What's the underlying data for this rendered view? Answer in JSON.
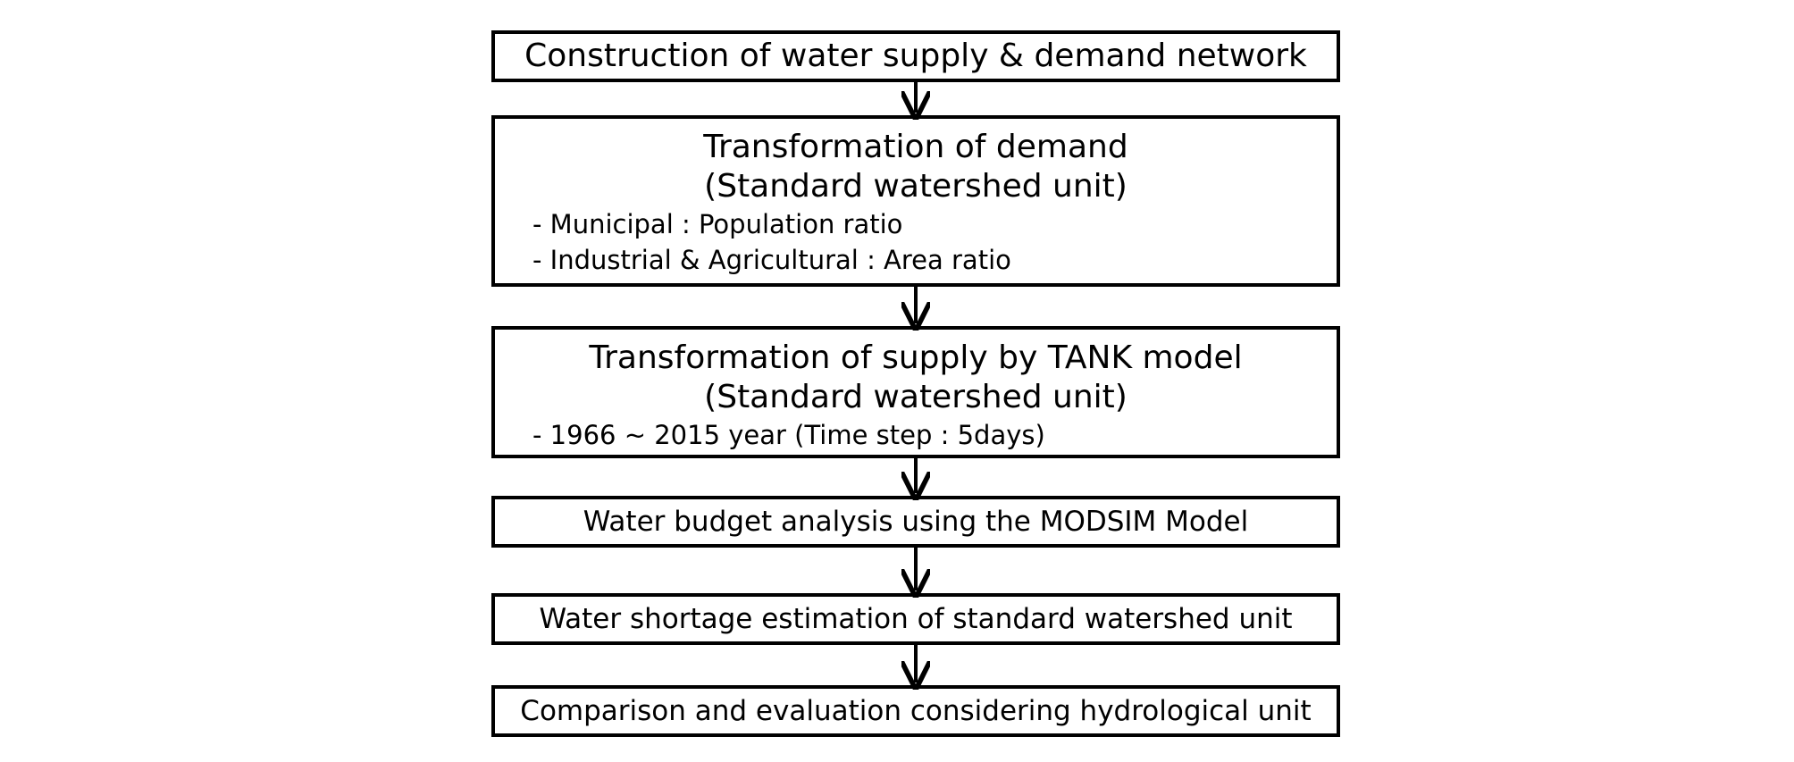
{
  "flowchart": {
    "steps": [
      {
        "title": "Construction of water supply & demand network"
      },
      {
        "title": "Transformation of demand",
        "subtitle": "(Standard watershed unit)",
        "bullets": [
          "- Municipal : Population ratio",
          "- Industrial & Agricultural : Area ratio"
        ]
      },
      {
        "title": "Transformation of supply by TANK model",
        "subtitle": "(Standard watershed unit)",
        "bullets": [
          "- 1966 ~ 2015 year (Time step : 5days)"
        ]
      },
      {
        "title": "Water budget analysis using the MODSIM Model"
      },
      {
        "title": "Water shortage estimation of standard watershed unit"
      },
      {
        "title": "Comparison and evaluation considering hydrological unit"
      }
    ]
  }
}
